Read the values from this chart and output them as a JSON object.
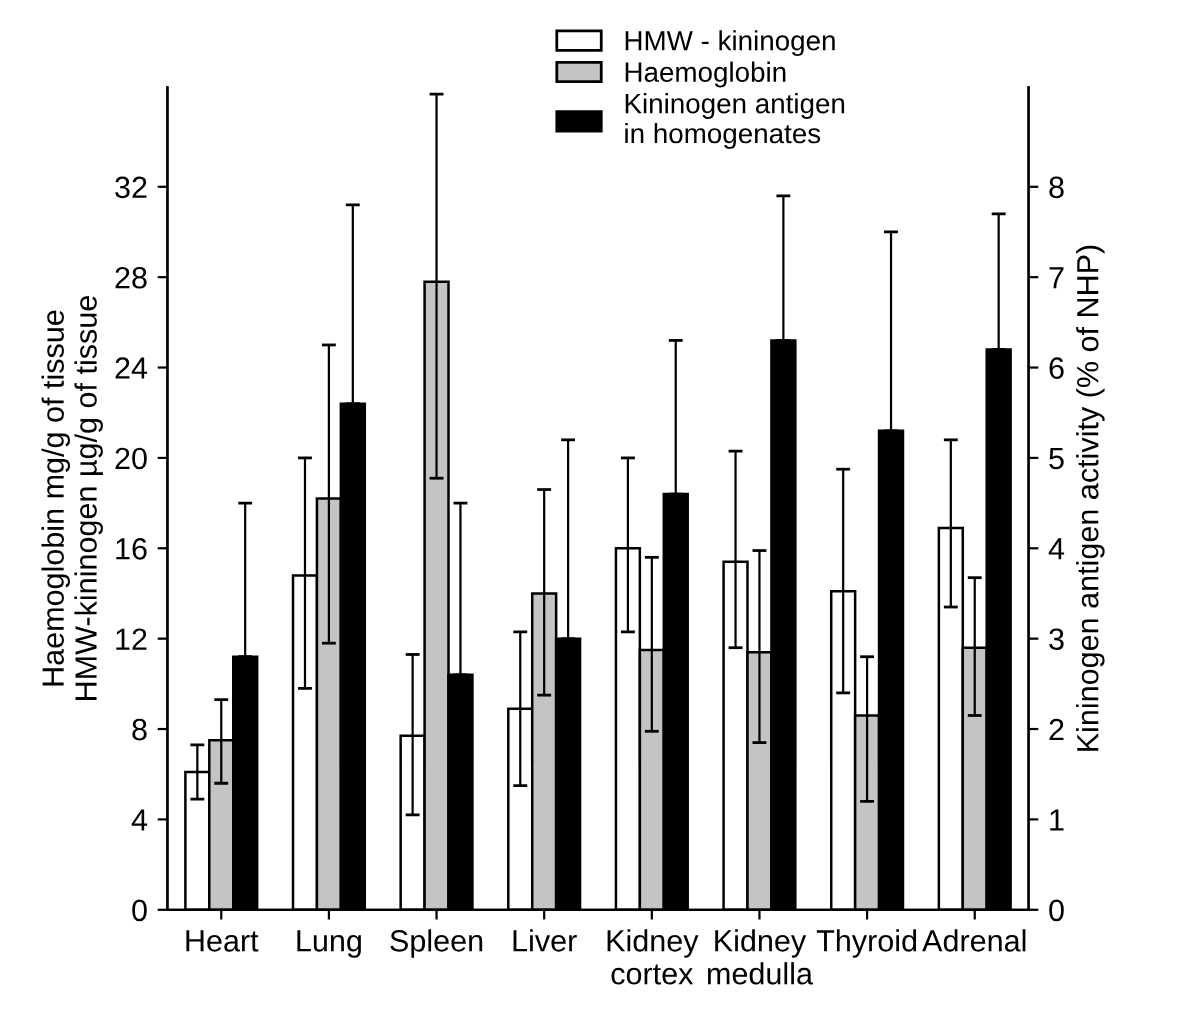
{
  "chart_data": {
    "type": "bar",
    "categories": [
      "Heart",
      "Lung",
      "Spleen",
      "Liver",
      "Kidney\ncortex",
      "Kidney\nmedulla",
      "Thyroid",
      "Adrenal"
    ],
    "ylabel": "Haemoglobin mg/g of tissue\nHMW-kininogen µg/g of tissue",
    "y2label": "Kininogen antigen activity (% of NHP)",
    "series": [
      {
        "name": "HMW - kininogen",
        "color": "#ffffff",
        "values": [
          6.1,
          14.8,
          7.7,
          8.9,
          16.0,
          15.4,
          14.1,
          16.9
        ],
        "errors": [
          [
            4.9,
            7.3
          ],
          [
            9.8,
            20.0
          ],
          [
            4.2,
            11.3
          ],
          [
            5.5,
            12.3
          ],
          [
            12.3,
            20.0
          ],
          [
            11.6,
            20.3
          ],
          [
            9.6,
            19.5
          ],
          [
            13.4,
            20.8
          ]
        ]
      },
      {
        "name": "Haemoglobin",
        "color": "#c4c4c4",
        "values": [
          7.5,
          18.2,
          27.8,
          14.0,
          11.5,
          11.4,
          8.6,
          11.6
        ],
        "errors": [
          [
            5.6,
            9.3
          ],
          [
            11.8,
            25.0
          ],
          [
            19.1,
            36.1
          ],
          [
            9.5,
            18.6
          ],
          [
            7.9,
            15.6
          ],
          [
            7.4,
            15.9
          ],
          [
            4.8,
            11.2
          ],
          [
            8.6,
            14.7
          ]
        ]
      },
      {
        "name": "Kininogen antigen\nin homogenates",
        "color": "#000000",
        "axis": "y2",
        "values": [
          2.8,
          5.6,
          2.6,
          3.0,
          4.6,
          6.3,
          5.3,
          6.2
        ],
        "errors": [
          [
            2.8,
            4.5
          ],
          [
            5.6,
            7.8
          ],
          [
            2.6,
            4.5
          ],
          [
            3.0,
            5.2
          ],
          [
            4.6,
            6.3
          ],
          [
            6.3,
            7.9
          ],
          [
            5.3,
            7.5
          ],
          [
            6.2,
            7.7
          ]
        ]
      }
    ],
    "ylim": [
      0,
      36.4
    ],
    "yticks": [
      0,
      4,
      8,
      12,
      16,
      20,
      24,
      28,
      32
    ],
    "y2lim": [
      0,
      9.1
    ],
    "y2ticks": [
      0,
      1,
      2,
      3,
      4,
      5,
      6,
      7,
      8
    ],
    "legend": "top",
    "grid": false
  }
}
